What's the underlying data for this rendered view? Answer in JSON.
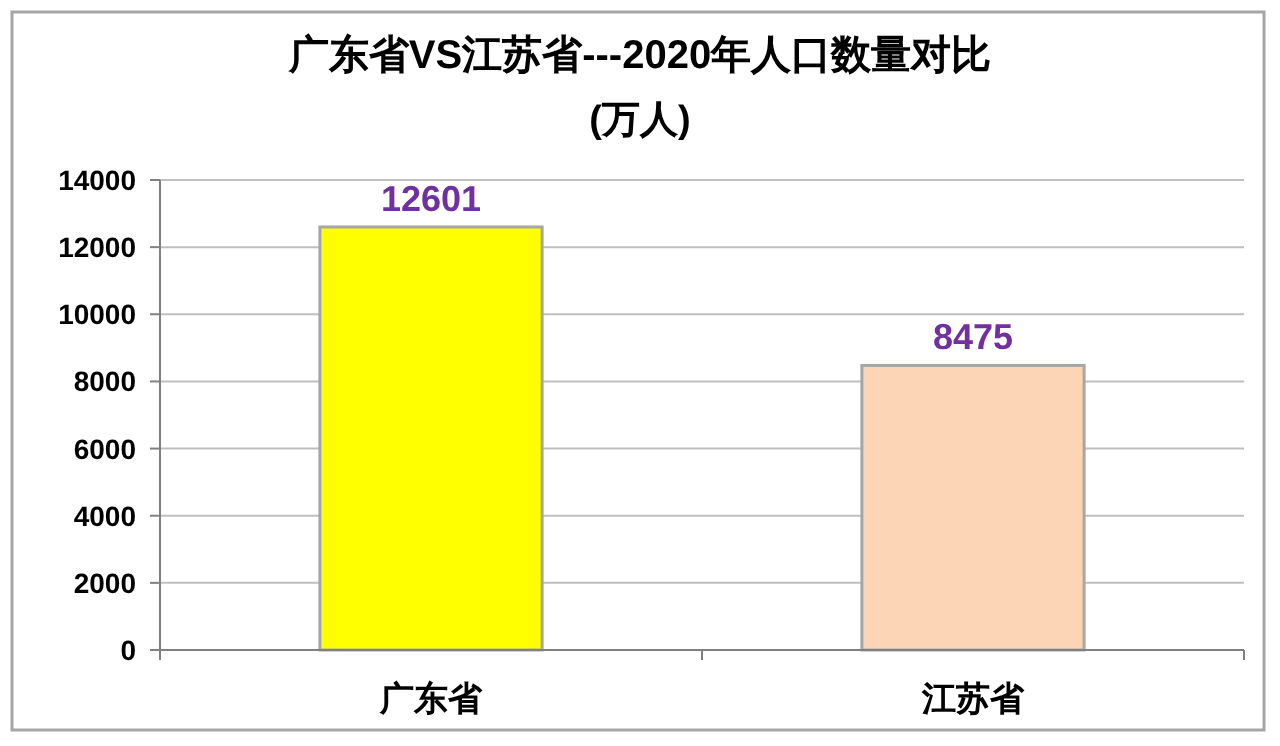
{
  "chart_data": {
    "type": "bar",
    "title": "广东省VS江苏省---2020年人口数量对比",
    "subtitle": "(万人)",
    "categories": [
      "广东省",
      "江苏省"
    ],
    "values": [
      12601,
      8475
    ],
    "colors": [
      "#ffff00",
      "#fbd5b5"
    ],
    "ylim": [
      0,
      14000
    ],
    "yticks": [
      0,
      2000,
      4000,
      6000,
      8000,
      10000,
      12000,
      14000
    ],
    "grid": "y",
    "data_labels": true
  }
}
